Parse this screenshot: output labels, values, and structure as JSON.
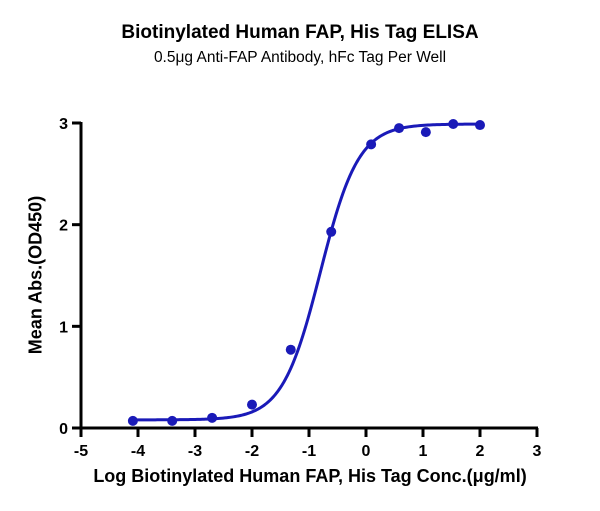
{
  "chart_data": {
    "type": "scatter",
    "title": "Biotinylated Human FAP, His Tag ELISA",
    "subtitle": "0.5μg Anti-FAP Antibody, hFc Tag Per Well",
    "xlabel": "Log Biotinylated Human FAP, His Tag Conc.(μg/ml)",
    "ylabel": "Mean Abs.(OD450)",
    "xlim": [
      -5,
      3
    ],
    "ylim": [
      0,
      3
    ],
    "xticks": [
      -5,
      -4,
      -3,
      -2,
      -1,
      0,
      1,
      2,
      3
    ],
    "yticks": [
      0,
      1,
      2,
      3
    ],
    "grid": false,
    "legend": null,
    "series": [
      {
        "name": "Biotinylated Human FAP, His Tag",
        "color": "#1a1ab8",
        "x": [
          -4.09,
          -3.4,
          -2.7,
          -2.0,
          -1.32,
          -0.61,
          0.09,
          0.58,
          1.05,
          1.53,
          2.0
        ],
        "y": [
          0.07,
          0.07,
          0.1,
          0.23,
          0.77,
          1.93,
          2.79,
          2.95,
          2.91,
          2.99,
          2.98
        ]
      }
    ],
    "fit": {
      "model": "4PL sigmoid",
      "bottom": 0.08,
      "top": 2.99,
      "logEC50": -0.8,
      "hill": 1.3,
      "x_range": [
        -4.09,
        2.0
      ]
    }
  }
}
